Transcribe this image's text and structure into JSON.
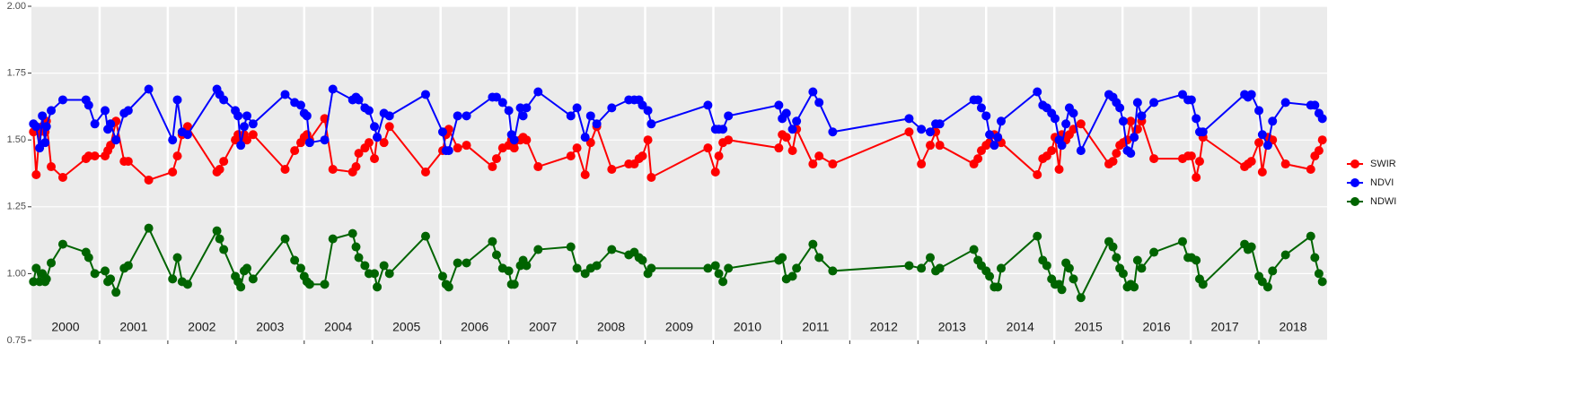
{
  "chart_data": {
    "type": "line",
    "x": [
      2000.03,
      2000.07,
      2000.12,
      2000.16,
      2000.2,
      2000.22,
      2000.29,
      2000.46,
      2000.8,
      2000.84,
      2000.93,
      2001.08,
      2001.12,
      2001.16,
      2001.24,
      2001.36,
      2001.42,
      2001.72,
      2002.07,
      2002.14,
      2002.21,
      2002.29,
      2002.72,
      2002.76,
      2002.82,
      2002.99,
      2003.03,
      2003.07,
      2003.12,
      2003.16,
      2003.25,
      2003.72,
      2003.86,
      2003.95,
      2004.0,
      2004.04,
      2004.08,
      2004.3,
      2004.42,
      2004.71,
      2004.76,
      2004.8,
      2004.89,
      2004.95,
      2005.03,
      2005.07,
      2005.17,
      2005.25,
      2005.78,
      2006.03,
      2006.08,
      2006.12,
      2006.25,
      2006.38,
      2006.76,
      2006.82,
      2006.91,
      2007.0,
      2007.04,
      2007.08,
      2007.17,
      2007.21,
      2007.26,
      2007.43,
      2007.91,
      2008.0,
      2008.12,
      2008.2,
      2008.29,
      2008.51,
      2008.76,
      2008.84,
      2008.91,
      2008.96,
      2009.04,
      2009.09,
      2009.92,
      2010.03,
      2010.08,
      2010.14,
      2010.22,
      2010.96,
      2011.01,
      2011.07,
      2011.16,
      2011.22,
      2011.46,
      2011.55,
      2011.75,
      2012.87,
      2013.05,
      2013.18,
      2013.26,
      2013.32,
      2013.82,
      2013.88,
      2013.93,
      2014.0,
      2014.05,
      2014.12,
      2014.17,
      2014.22,
      2014.75,
      2014.83,
      2014.89,
      2014.96,
      2015.01,
      2015.07,
      2015.11,
      2015.17,
      2015.22,
      2015.28,
      2015.39,
      2015.8,
      2015.86,
      2015.91,
      2015.96,
      2016.01,
      2016.07,
      2016.12,
      2016.17,
      2016.22,
      2016.28,
      2016.46,
      2016.88,
      2016.96,
      2017.01,
      2017.08,
      2017.13,
      2017.18,
      2017.79,
      2017.84,
      2017.89,
      2018.0,
      2018.05,
      2018.13,
      2018.2,
      2018.39,
      2018.76,
      2018.82,
      2018.88,
      2018.93
    ],
    "series": [
      {
        "name": "SWIR",
        "color": "#ff0000",
        "values": [
          1.53,
          1.37,
          1.53,
          1.55,
          1.53,
          1.57,
          1.4,
          1.36,
          1.43,
          1.44,
          1.44,
          1.44,
          1.46,
          1.48,
          1.57,
          1.42,
          1.42,
          1.35,
          1.38,
          1.44,
          1.52,
          1.55,
          1.38,
          1.39,
          1.42,
          1.5,
          1.52,
          1.5,
          1.52,
          1.5,
          1.52,
          1.39,
          1.46,
          1.49,
          1.51,
          1.52,
          1.5,
          1.58,
          1.39,
          1.38,
          1.4,
          1.45,
          1.47,
          1.49,
          1.43,
          1.51,
          1.49,
          1.55,
          1.38,
          1.46,
          1.52,
          1.54,
          1.47,
          1.48,
          1.4,
          1.43,
          1.47,
          1.48,
          1.5,
          1.47,
          1.5,
          1.51,
          1.5,
          1.4,
          1.44,
          1.47,
          1.37,
          1.49,
          1.55,
          1.39,
          1.41,
          1.41,
          1.43,
          1.44,
          1.5,
          1.36,
          1.47,
          1.38,
          1.44,
          1.49,
          1.5,
          1.47,
          1.52,
          1.51,
          1.46,
          1.54,
          1.41,
          1.44,
          1.41,
          1.53,
          1.41,
          1.48,
          1.53,
          1.48,
          1.41,
          1.43,
          1.46,
          1.48,
          1.49,
          1.52,
          1.51,
          1.49,
          1.37,
          1.43,
          1.44,
          1.46,
          1.51,
          1.39,
          1.52,
          1.5,
          1.52,
          1.54,
          1.56,
          1.41,
          1.42,
          1.45,
          1.48,
          1.49,
          1.5,
          1.57,
          1.51,
          1.54,
          1.57,
          1.43,
          1.43,
          1.44,
          1.44,
          1.36,
          1.42,
          1.51,
          1.4,
          1.41,
          1.42,
          1.49,
          1.38,
          1.51,
          1.5,
          1.41,
          1.39,
          1.44,
          1.46,
          1.5
        ]
      },
      {
        "name": "NDVI",
        "color": "#0000ff",
        "values": [
          1.56,
          1.55,
          1.47,
          1.59,
          1.49,
          1.55,
          1.61,
          1.65,
          1.65,
          1.63,
          1.56,
          1.61,
          1.54,
          1.56,
          1.5,
          1.6,
          1.61,
          1.69,
          1.5,
          1.65,
          1.53,
          1.52,
          1.69,
          1.67,
          1.65,
          1.61,
          1.59,
          1.48,
          1.55,
          1.59,
          1.56,
          1.67,
          1.64,
          1.63,
          1.6,
          1.59,
          1.49,
          1.5,
          1.69,
          1.65,
          1.66,
          1.65,
          1.62,
          1.61,
          1.55,
          1.51,
          1.6,
          1.59,
          1.67,
          1.53,
          1.46,
          1.46,
          1.59,
          1.59,
          1.66,
          1.66,
          1.64,
          1.61,
          1.52,
          1.5,
          1.62,
          1.59,
          1.62,
          1.68,
          1.59,
          1.62,
          1.51,
          1.59,
          1.56,
          1.62,
          1.65,
          1.65,
          1.65,
          1.63,
          1.61,
          1.56,
          1.63,
          1.54,
          1.54,
          1.54,
          1.59,
          1.63,
          1.58,
          1.6,
          1.54,
          1.57,
          1.68,
          1.64,
          1.53,
          1.58,
          1.54,
          1.53,
          1.56,
          1.56,
          1.65,
          1.65,
          1.62,
          1.59,
          1.52,
          1.48,
          1.51,
          1.57,
          1.68,
          1.63,
          1.62,
          1.6,
          1.58,
          1.5,
          1.48,
          1.56,
          1.62,
          1.6,
          1.46,
          1.67,
          1.66,
          1.64,
          1.62,
          1.57,
          1.46,
          1.45,
          1.51,
          1.64,
          1.59,
          1.64,
          1.67,
          1.65,
          1.65,
          1.58,
          1.53,
          1.53,
          1.67,
          1.66,
          1.67,
          1.61,
          1.52,
          1.48,
          1.57,
          1.64,
          1.63,
          1.63,
          1.6,
          1.58
        ]
      },
      {
        "name": "NDWI",
        "color": "#006400",
        "values": [
          0.97,
          1.02,
          0.97,
          1.0,
          0.97,
          0.98,
          1.04,
          1.11,
          1.08,
          1.06,
          1.0,
          1.01,
          0.97,
          0.98,
          0.93,
          1.02,
          1.03,
          1.17,
          0.98,
          1.06,
          0.97,
          0.96,
          1.16,
          1.13,
          1.09,
          0.99,
          0.97,
          0.95,
          1.01,
          1.02,
          0.98,
          1.13,
          1.05,
          1.02,
          0.99,
          0.97,
          0.96,
          0.96,
          1.13,
          1.15,
          1.1,
          1.06,
          1.03,
          1.0,
          1.0,
          0.95,
          1.03,
          1.0,
          1.14,
          0.99,
          0.96,
          0.95,
          1.04,
          1.04,
          1.12,
          1.07,
          1.02,
          1.01,
          0.96,
          0.96,
          1.03,
          1.05,
          1.03,
          1.09,
          1.1,
          1.02,
          1.0,
          1.02,
          1.03,
          1.09,
          1.07,
          1.08,
          1.06,
          1.05,
          1.0,
          1.02,
          1.02,
          1.03,
          1.0,
          0.97,
          1.02,
          1.05,
          1.06,
          0.98,
          0.99,
          1.02,
          1.11,
          1.06,
          1.01,
          1.03,
          1.02,
          1.06,
          1.01,
          1.02,
          1.09,
          1.05,
          1.03,
          1.01,
          0.99,
          0.95,
          0.95,
          1.02,
          1.14,
          1.05,
          1.03,
          0.98,
          0.96,
          0.96,
          0.94,
          1.04,
          1.02,
          0.98,
          0.91,
          1.12,
          1.1,
          1.06,
          1.02,
          1.0,
          0.95,
          0.96,
          0.95,
          1.05,
          1.02,
          1.08,
          1.12,
          1.06,
          1.06,
          1.05,
          0.98,
          0.96,
          1.11,
          1.09,
          1.1,
          0.99,
          0.97,
          0.95,
          1.01,
          1.07,
          1.14,
          1.06,
          1.0,
          0.97
        ]
      }
    ],
    "xlim": [
      2000,
      2019
    ],
    "xticks": [
      2001,
      2002,
      2003,
      2004,
      2005,
      2006,
      2007,
      2008,
      2009,
      2010,
      2011,
      2012,
      2013,
      2014,
      2015,
      2016,
      2017,
      2018
    ],
    "year_labels": [
      "2000",
      "2001",
      "2002",
      "2003",
      "2004",
      "2005",
      "2006",
      "2007",
      "2008",
      "2009",
      "2010",
      "2011",
      "2012",
      "2013",
      "2014",
      "2015",
      "2016",
      "2017",
      "2018"
    ],
    "ylim": [
      0.75,
      2.0
    ],
    "yticks": [
      {
        "value": 0.75,
        "label": "0.75"
      },
      {
        "value": 1.0,
        "label": "1.00"
      },
      {
        "value": 1.25,
        "label": "1.25"
      },
      {
        "value": 1.5,
        "label": "1.50"
      },
      {
        "value": 1.75,
        "label": "1.75"
      },
      {
        "value": 2.0,
        "label": "2.00"
      }
    ],
    "grid": true,
    "legend": "right"
  }
}
